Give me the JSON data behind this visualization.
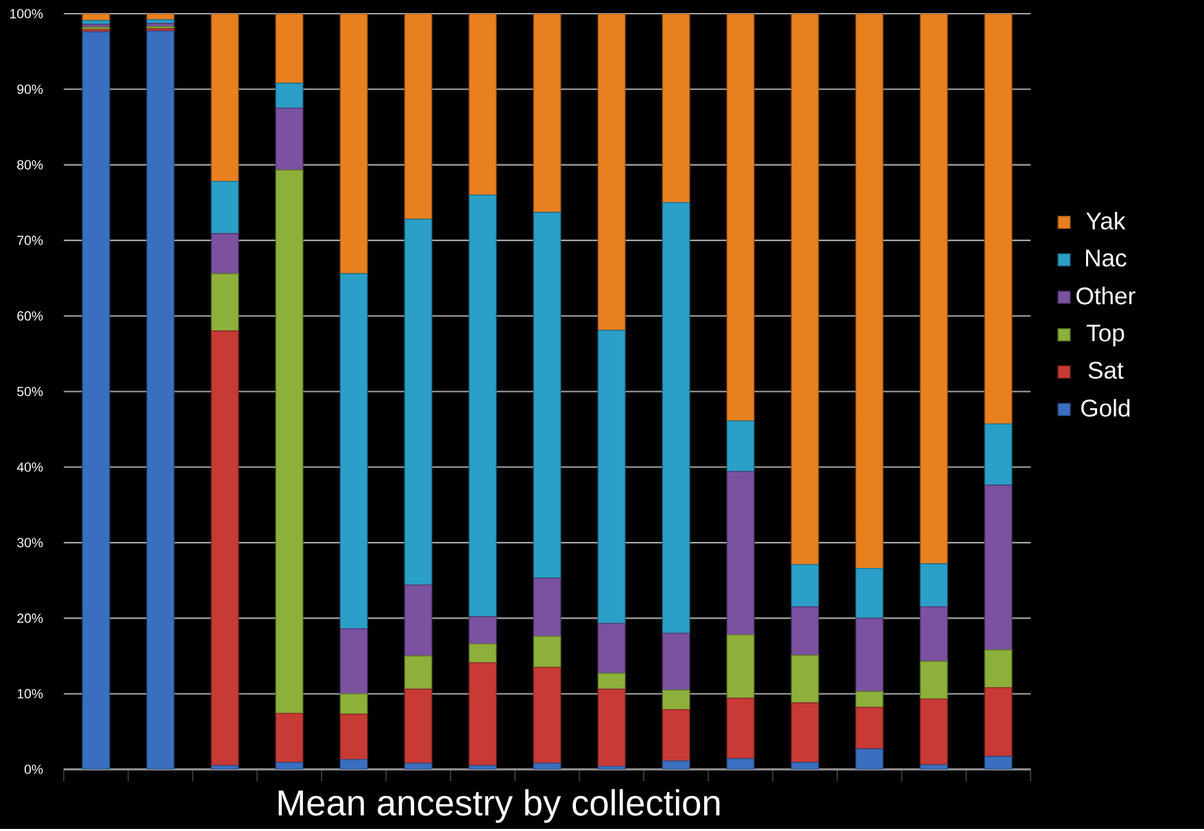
{
  "chart_data": {
    "type": "bar",
    "stacked": true,
    "xlabel": "Mean ancestry by collection",
    "categories": [
      null,
      null,
      null,
      null,
      null,
      null,
      null,
      null,
      null,
      null,
      null,
      null,
      null,
      null,
      null
    ],
    "series": [
      {
        "name": "Gold",
        "color": "#3a6fc0",
        "values": [
          97.6,
          97.7,
          0.5,
          0.9,
          1.3,
          0.8,
          0.5,
          0.8,
          0.4,
          1.1,
          1.4,
          0.9,
          2.7,
          0.6,
          1.7
        ]
      },
      {
        "name": "Sat",
        "color": "#c73a35",
        "values": [
          0.3,
          0.3,
          57.5,
          6.5,
          6.0,
          9.8,
          13.6,
          12.7,
          10.2,
          6.8,
          8.0,
          7.9,
          5.5,
          8.7,
          9.1
        ]
      },
      {
        "name": "Top",
        "color": "#8db03a",
        "values": [
          0.3,
          0.3,
          7.6,
          71.9,
          2.7,
          4.4,
          2.5,
          4.1,
          2.1,
          2.6,
          8.4,
          6.3,
          2.1,
          5.0,
          5.0
        ]
      },
      {
        "name": "Other",
        "color": "#7a52a0",
        "values": [
          0.4,
          0.4,
          5.3,
          8.2,
          8.6,
          9.4,
          3.6,
          7.7,
          6.6,
          7.5,
          21.6,
          6.4,
          9.7,
          7.2,
          21.8
        ]
      },
      {
        "name": "Nac",
        "color": "#2b9fc8",
        "values": [
          0.5,
          0.5,
          6.9,
          3.3,
          47.0,
          48.4,
          55.8,
          48.4,
          38.8,
          57.0,
          6.7,
          5.6,
          6.6,
          5.7,
          8.1
        ]
      },
      {
        "name": "Yak",
        "color": "#e8801f",
        "values": [
          0.9,
          0.8,
          22.2,
          9.2,
          34.4,
          27.2,
          24.0,
          26.3,
          41.9,
          25.0,
          53.9,
          72.9,
          73.4,
          72.8,
          54.3
        ]
      }
    ],
    "ylim": [
      0,
      100
    ],
    "yticks": [
      {
        "value": 0,
        "label": "0%"
      },
      {
        "value": 10,
        "label": "10%"
      },
      {
        "value": 20,
        "label": "20%"
      },
      {
        "value": 30,
        "label": "30%"
      },
      {
        "value": 40,
        "label": "40%"
      },
      {
        "value": 50,
        "label": "50%"
      },
      {
        "value": 60,
        "label": "60%"
      },
      {
        "value": 70,
        "label": "70%"
      },
      {
        "value": 80,
        "label": "80%"
      },
      {
        "value": 90,
        "label": "90%"
      },
      {
        "value": 100,
        "label": "100%"
      }
    ],
    "grid": "y",
    "legend": "right"
  }
}
